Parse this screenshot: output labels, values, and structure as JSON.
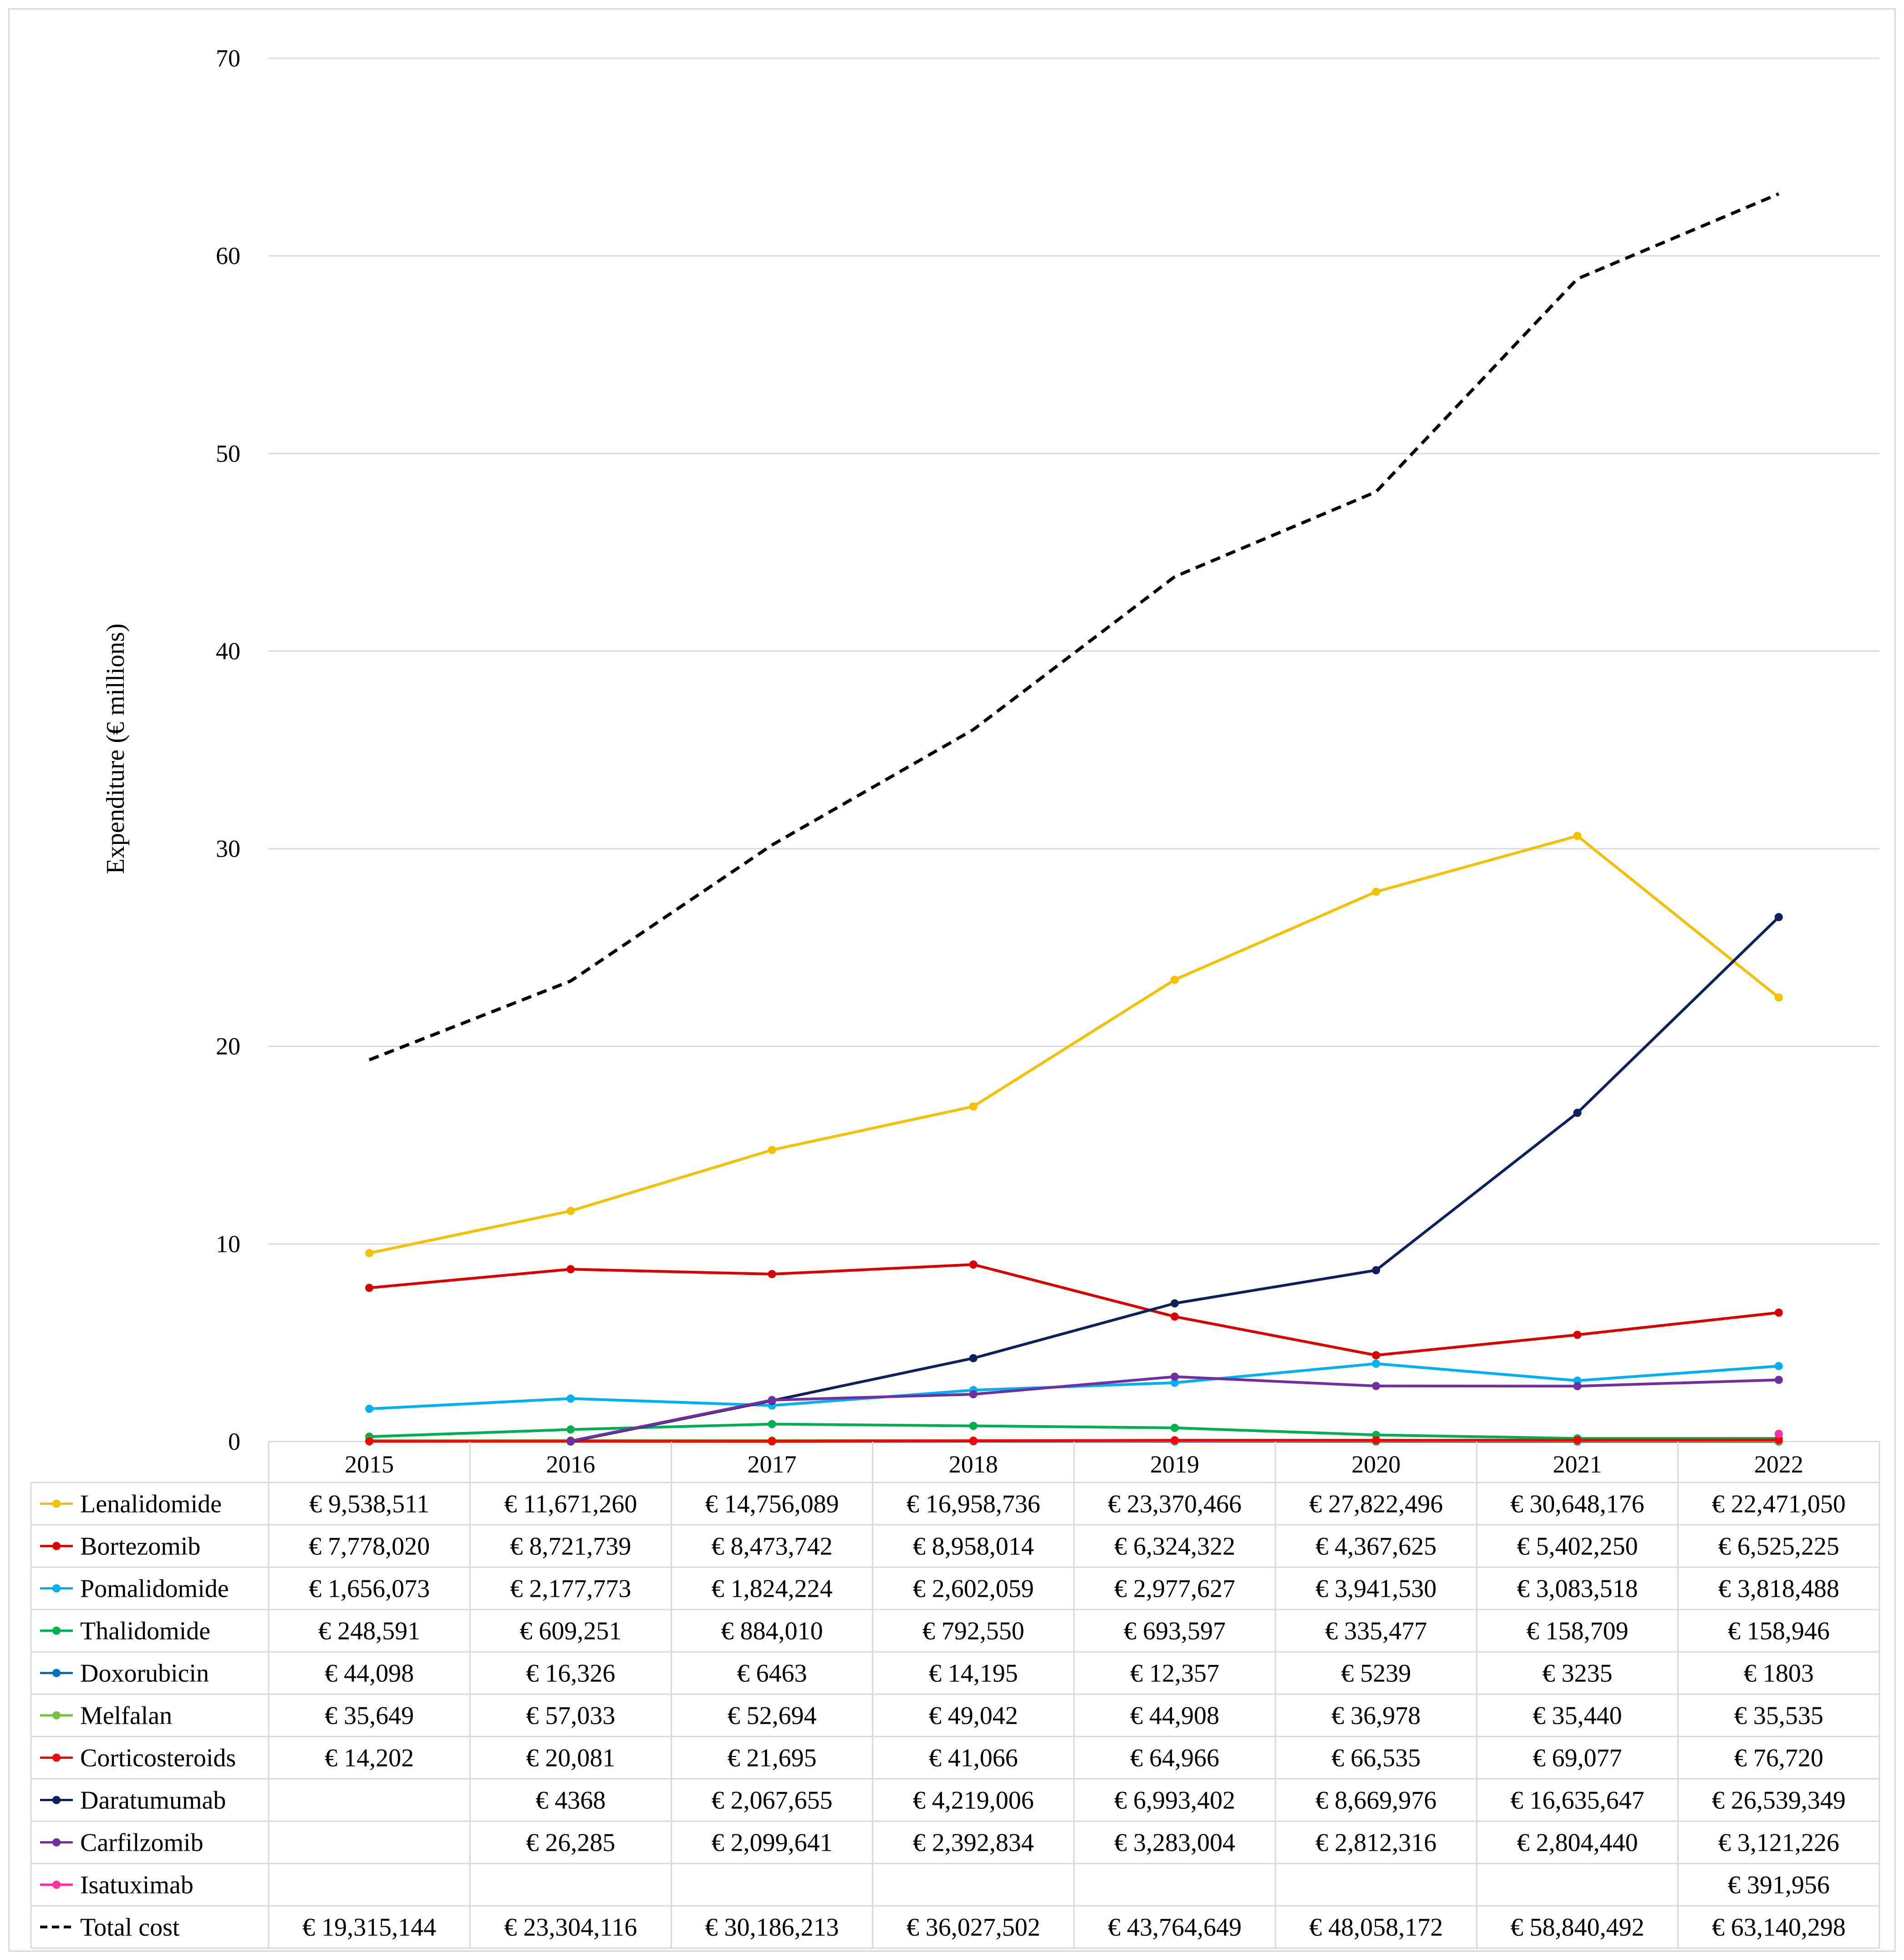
{
  "chart_data": {
    "type": "line",
    "title": "",
    "xlabel": "",
    "ylabel": "Expenditure (€ millions)",
    "ylim": [
      0,
      70
    ],
    "yticks": [
      0,
      10,
      20,
      30,
      40,
      50,
      60,
      70
    ],
    "grid": true,
    "legend": "data-table-left",
    "categories": [
      "2015",
      "2016",
      "2017",
      "2018",
      "2019",
      "2020",
      "2021",
      "2022"
    ],
    "series": [
      {
        "name": "Lenalidomide",
        "color": "#f5c000",
        "dashed": false,
        "markers": true,
        "values": [
          9.538511,
          11.67126,
          14.756089,
          16.958736,
          23.370466,
          27.822496,
          30.648176,
          22.47105
        ],
        "labels": [
          "€ 9,538,511",
          "€ 11,671,260",
          "€ 14,756,089",
          "€ 16,958,736",
          "€ 23,370,466",
          "€ 27,822,496",
          "€ 30,648,176",
          "€ 22,471,050"
        ]
      },
      {
        "name": "Bortezomib",
        "color": "#d90000",
        "dashed": false,
        "markers": true,
        "values": [
          7.77802,
          8.721739,
          8.473742,
          8.958014,
          6.324322,
          4.367625,
          5.40225,
          6.525225
        ],
        "labels": [
          "€ 7,778,020",
          "€ 8,721,739",
          "€ 8,473,742",
          "€ 8,958,014",
          "€ 6,324,322",
          "€ 4,367,625",
          "€ 5,402,250",
          "€ 6,525,225"
        ]
      },
      {
        "name": "Pomalidomide",
        "color": "#00b0f0",
        "dashed": false,
        "markers": true,
        "values": [
          1.656073,
          2.177773,
          1.824224,
          2.602059,
          2.977627,
          3.94153,
          3.083518,
          3.818488
        ],
        "labels": [
          "€ 1,656,073",
          "€ 2,177,773",
          "€ 1,824,224",
          "€ 2,602,059",
          "€ 2,977,627",
          "€ 3,941,530",
          "€ 3,083,518",
          "€ 3,818,488"
        ]
      },
      {
        "name": "Thalidomide",
        "color": "#00b050",
        "dashed": false,
        "markers": true,
        "values": [
          0.248591,
          0.609251,
          0.88401,
          0.79255,
          0.693597,
          0.335477,
          0.158709,
          0.158946
        ],
        "labels": [
          "€ 248,591",
          "€ 609,251",
          "€ 884,010",
          "€ 792,550",
          "€ 693,597",
          "€ 335,477",
          "€ 158,709",
          "€ 158,946"
        ]
      },
      {
        "name": "Doxorubicin",
        "color": "#0070c0",
        "dashed": false,
        "markers": true,
        "values": [
          0.044098,
          0.016326,
          0.006463,
          0.014195,
          0.012357,
          0.005239,
          0.003235,
          0.001803
        ],
        "labels": [
          "€ 44,098",
          "€ 16,326",
          "€ 6463",
          "€ 14,195",
          "€ 12,357",
          "€ 5239",
          "€ 3235",
          "€ 1803"
        ]
      },
      {
        "name": "Melfalan",
        "color": "#7ac143",
        "dashed": false,
        "markers": true,
        "values": [
          0.035649,
          0.057033,
          0.052694,
          0.049042,
          0.044908,
          0.036978,
          0.03544,
          0.035535
        ],
        "labels": [
          "€ 35,649",
          "€ 57,033",
          "€ 52,694",
          "€ 49,042",
          "€ 44,908",
          "€ 36,978",
          "€ 35,440",
          "€ 35,535"
        ]
      },
      {
        "name": "Corticosteroids",
        "color": "#ff0000",
        "dashed": false,
        "markers": true,
        "values": [
          0.014202,
          0.020081,
          0.021695,
          0.041066,
          0.064966,
          0.066535,
          0.069077,
          0.07672
        ],
        "labels": [
          "€ 14,202",
          "€ 20,081",
          "€ 21,695",
          "€ 41,066",
          "€ 64,966",
          "€ 66,535",
          "€ 69,077",
          "€ 76,720"
        ]
      },
      {
        "name": "Daratumumab",
        "color": "#0c1f5e",
        "dashed": false,
        "markers": true,
        "values": [
          null,
          0.004368,
          2.067655,
          4.219006,
          6.993402,
          8.669976,
          16.635647,
          26.539349
        ],
        "labels": [
          "",
          "€ 4368",
          "€ 2,067,655",
          "€ 4,219,006",
          "€ 6,993,402",
          "€ 8,669,976",
          "€ 16,635,647",
          "€ 26,539,349"
        ]
      },
      {
        "name": "Carfilzomib",
        "color": "#7030a0",
        "dashed": false,
        "markers": true,
        "values": [
          null,
          0.026285,
          2.099641,
          2.392834,
          3.283004,
          2.812316,
          2.80444,
          3.121226
        ],
        "labels": [
          "",
          "€ 26,285",
          "€ 2,099,641",
          "€ 2,392,834",
          "€ 3,283,004",
          "€ 2,812,316",
          "€ 2,804,440",
          "€ 3,121,226"
        ]
      },
      {
        "name": "Isatuximab",
        "color": "#ff3399",
        "dashed": false,
        "markers": true,
        "values": [
          null,
          null,
          null,
          null,
          null,
          null,
          null,
          0.391956
        ],
        "labels": [
          "",
          "",
          "",
          "",
          "",
          "",
          "",
          "€ 391,956"
        ]
      },
      {
        "name": "Total cost",
        "color": "#000000",
        "dashed": true,
        "markers": false,
        "values": [
          19.315144,
          23.304116,
          30.186213,
          36.027502,
          43.764649,
          48.058172,
          58.840492,
          63.140298
        ],
        "labels": [
          "€ 19,315,144",
          "€ 23,304,116",
          "€ 30,186,213",
          "€ 36,027,502",
          "€ 43,764,649",
          "€ 48,058,172",
          "€ 58,840,492",
          "€ 63,140,298"
        ]
      }
    ]
  }
}
